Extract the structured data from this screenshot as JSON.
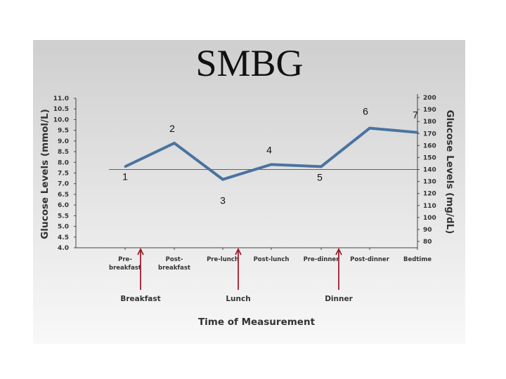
{
  "chart_data": {
    "type": "line",
    "title": "SMBG",
    "categories": [
      "Pre-breakfast",
      "Post-breakfast",
      "Pre-lunch",
      "Post-lunch",
      "Pre-dinner",
      "Post-dinner",
      "Bedtime"
    ],
    "category_lines": [
      [
        "Pre-",
        "breakfast"
      ],
      [
        "Post-",
        "breakfast"
      ],
      [
        "Pre-lunch"
      ],
      [
        "Post-lunch"
      ],
      [
        "Pre-dinner"
      ],
      [
        "Post-dinner"
      ],
      [
        "Bedtime"
      ]
    ],
    "values": [
      7.8,
      8.9,
      7.2,
      7.9,
      7.8,
      9.6,
      9.4
    ],
    "point_labels": [
      "1",
      "2",
      "3",
      "4",
      "5",
      "6",
      "7"
    ],
    "xlabel": "Time of Measurement",
    "ylabel": "Glucose Levels (mmol/L)",
    "y2label": "Glucose Levels (mg/dL)",
    "ylim": [
      4.0,
      11.0
    ],
    "yticks": [
      "4.0",
      "4.5",
      "5.0",
      "5.5",
      "6.0",
      "6.5",
      "7.0",
      "7.5",
      "8.0",
      "8.5",
      "9.0",
      "9.5",
      "10.0",
      "10.5",
      "11.0"
    ],
    "y2lim": [
      80,
      200
    ],
    "y2ticks": [
      "80",
      "90",
      "100",
      "110",
      "120",
      "130",
      "140",
      "150",
      "160",
      "170",
      "180",
      "190",
      "200"
    ],
    "reference_line": {
      "value_mgdl": 140,
      "color": "#c0392b"
    },
    "meal_markers": [
      {
        "label": "Breakfast",
        "between": [
          "Pre-breakfast",
          "Post-breakfast"
        ]
      },
      {
        "label": "Lunch",
        "between": [
          "Pre-lunch",
          "Post-lunch"
        ]
      },
      {
        "label": "Dinner",
        "between": [
          "Pre-dinner",
          "Post-dinner"
        ]
      }
    ],
    "line_color": "#4a73a0",
    "arrow_color": "#a01c2c",
    "grid": false
  }
}
